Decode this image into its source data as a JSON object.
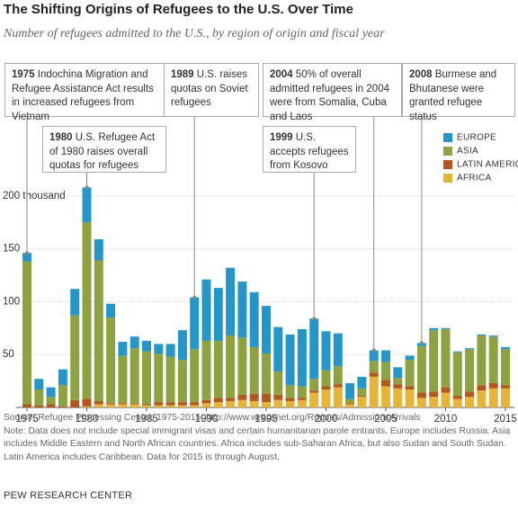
{
  "chart_data": {
    "type": "stacked-bar",
    "title": "The Shifting Origins of Refugees to the U.S. Over Time",
    "subtitle": "Number of refugees admitted to the U.S., by region of origin and fiscal year",
    "categories": [
      1975,
      null,
      null,
      null,
      null,
      1980,
      null,
      null,
      null,
      null,
      1985,
      null,
      null,
      null,
      null,
      1990,
      null,
      null,
      null,
      null,
      1995,
      null,
      null,
      null,
      null,
      2000,
      null,
      null,
      null,
      null,
      2005,
      null,
      null,
      null,
      null,
      2010,
      null,
      null,
      null,
      null,
      2015
    ],
    "series": [
      {
        "name": "EUROPE",
        "color": "#2596c7",
        "values": [
          8,
          10,
          9,
          15,
          25,
          33,
          20,
          13,
          13,
          11,
          10,
          9,
          12,
          28,
          49,
          58,
          50,
          64,
          53,
          52,
          45,
          42,
          48,
          54,
          57,
          37,
          31,
          15,
          11,
          10,
          11,
          10,
          4,
          3,
          2,
          1,
          1,
          1,
          1,
          1,
          2
        ]
      },
      {
        "name": "ASIA",
        "color": "#8fa241",
        "values": [
          135,
          15,
          7,
          20,
          80,
          167,
          133,
          81,
          45,
          52,
          50,
          46,
          43,
          40,
          50,
          56,
          54,
          59,
          54,
          44,
          38,
          22,
          12,
          11,
          11,
          15,
          17,
          4,
          7,
          11,
          17,
          6,
          25,
          44,
          58,
          55,
          41,
          40,
          47,
          44,
          34
        ]
      },
      {
        "name": "LATIN AMERICA",
        "color": "#b4561f",
        "values": [
          3,
          2,
          3,
          1,
          7,
          7,
          3,
          1,
          1,
          1,
          1,
          3,
          3,
          3,
          3,
          3,
          4,
          3,
          5,
          7,
          8,
          5,
          3,
          2,
          2,
          3,
          3,
          1,
          1,
          4,
          6,
          4,
          3,
          5,
          5,
          5,
          3,
          5,
          5,
          5,
          3
        ]
      },
      {
        "name": "AFRICA",
        "color": "#e6b43b",
        "values": [
          0,
          0,
          0,
          0,
          0,
          1,
          3,
          3,
          3,
          3,
          2,
          2,
          2,
          2,
          2,
          4,
          5,
          6,
          7,
          6,
          5,
          7,
          6,
          7,
          14,
          17,
          19,
          3,
          10,
          29,
          20,
          18,
          17,
          9,
          10,
          14,
          8,
          10,
          16,
          18,
          18
        ]
      }
    ],
    "ylim": [
      0,
      210
    ],
    "yticks": [
      50,
      100,
      150,
      {
        "value": 200,
        "label": "200 thousand"
      }
    ],
    "grid": true,
    "annotations": [
      {
        "year": "1975",
        "text": "Indochina Migration and Refugee Assistance Act results in increased refugees from Vietnam"
      },
      {
        "year": "1980",
        "text": "U.S. Refugee Act of 1980 raises overall quotas for refugees"
      },
      {
        "year": "1989",
        "text": "U.S. raises quotas on Soviet refugees"
      },
      {
        "year": "1999",
        "text": "U.S. accepts refugees from Kosovo"
      },
      {
        "year": "2004",
        "text": "50% of overall admitted refugees in 2004 were from Somalia, Cuba and Laos"
      },
      {
        "year": "2008",
        "text": "Burmese and Bhutanese were granted refugee status"
      }
    ],
    "source": "Source: Refugee Processing Center, 1975-2015, http://www.wrapsnet.org/Reports/AdmissionsArrivals",
    "note": "Note: Data does not include special immigrant visas and certain humanitarian parole entrants. Europe includes Russia. Asia includes Middle Eastern and North African countries. Africa includes sub-Saharan Africa, but also Sudan and South Sudan. Latin America includes Caribbean. Data for 2015 is through August.",
    "credit": "PEW RESEARCH CENTER"
  }
}
